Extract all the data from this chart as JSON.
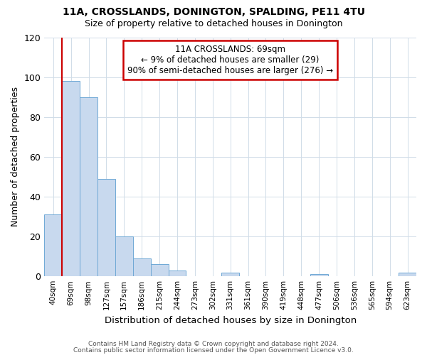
{
  "title": "11A, CROSSLANDS, DONINGTON, SPALDING, PE11 4TU",
  "subtitle": "Size of property relative to detached houses in Donington",
  "xlabel": "Distribution of detached houses by size in Donington",
  "ylabel": "Number of detached properties",
  "bar_labels": [
    "40sqm",
    "69sqm",
    "98sqm",
    "127sqm",
    "157sqm",
    "186sqm",
    "215sqm",
    "244sqm",
    "273sqm",
    "302sqm",
    "331sqm",
    "361sqm",
    "390sqm",
    "419sqm",
    "448sqm",
    "477sqm",
    "506sqm",
    "536sqm",
    "565sqm",
    "594sqm",
    "623sqm"
  ],
  "bar_values": [
    31,
    98,
    90,
    49,
    20,
    9,
    6,
    3,
    0,
    0,
    2,
    0,
    0,
    0,
    0,
    1,
    0,
    0,
    0,
    0,
    2
  ],
  "bar_color": "#c8d9ee",
  "bar_edge_color": "#6fa8d5",
  "highlight_index": 1,
  "highlight_edge_color": "#cc0000",
  "annotation_title": "11A CROSSLANDS: 69sqm",
  "annotation_line1": "← 9% of detached houses are smaller (29)",
  "annotation_line2": "90% of semi-detached houses are larger (276) →",
  "annotation_box_color": "#ffffff",
  "annotation_box_edge": "#cc0000",
  "ylim": [
    0,
    120
  ],
  "yticks": [
    0,
    20,
    40,
    60,
    80,
    100,
    120
  ],
  "footer1": "Contains HM Land Registry data © Crown copyright and database right 2024.",
  "footer2": "Contains public sector information licensed under the Open Government Licence v3.0.",
  "background_color": "#ffffff",
  "grid_color": "#d0dce8"
}
